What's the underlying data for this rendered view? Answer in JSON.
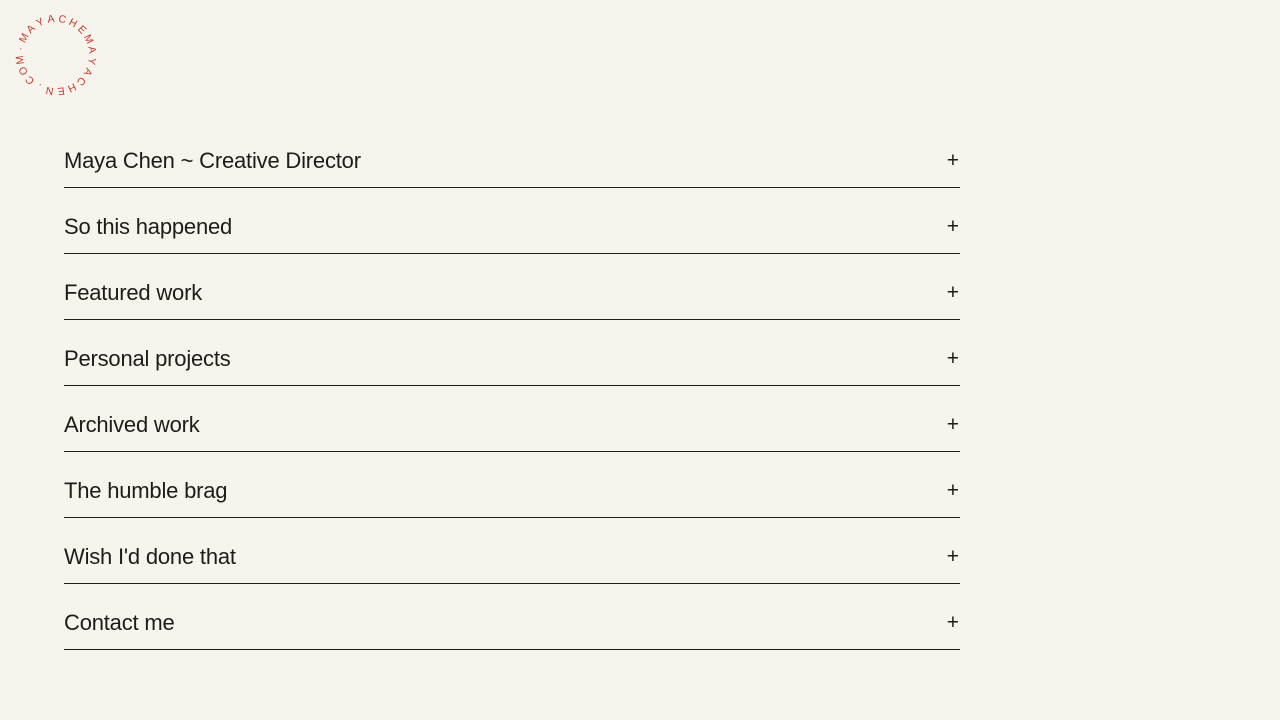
{
  "page": {
    "background_color": "#f7f4ed",
    "ink_color": "#1e1c19"
  },
  "logo": {
    "circular_text": "·MAYACHEMAYACHEN.COM",
    "reads_as": "MAYACHEN.COM · MAYACHE",
    "color": "#c8392c"
  },
  "accordion": {
    "toggle_symbol": "+",
    "items": [
      {
        "label": "Maya Chen ~ Creative Director"
      },
      {
        "label": "So this happened"
      },
      {
        "label": "Featured work"
      },
      {
        "label": "Personal projects"
      },
      {
        "label": "Archived work"
      },
      {
        "label": "The humble brag"
      },
      {
        "label": "Wish I'd done that"
      },
      {
        "label": "Contact me"
      }
    ]
  }
}
